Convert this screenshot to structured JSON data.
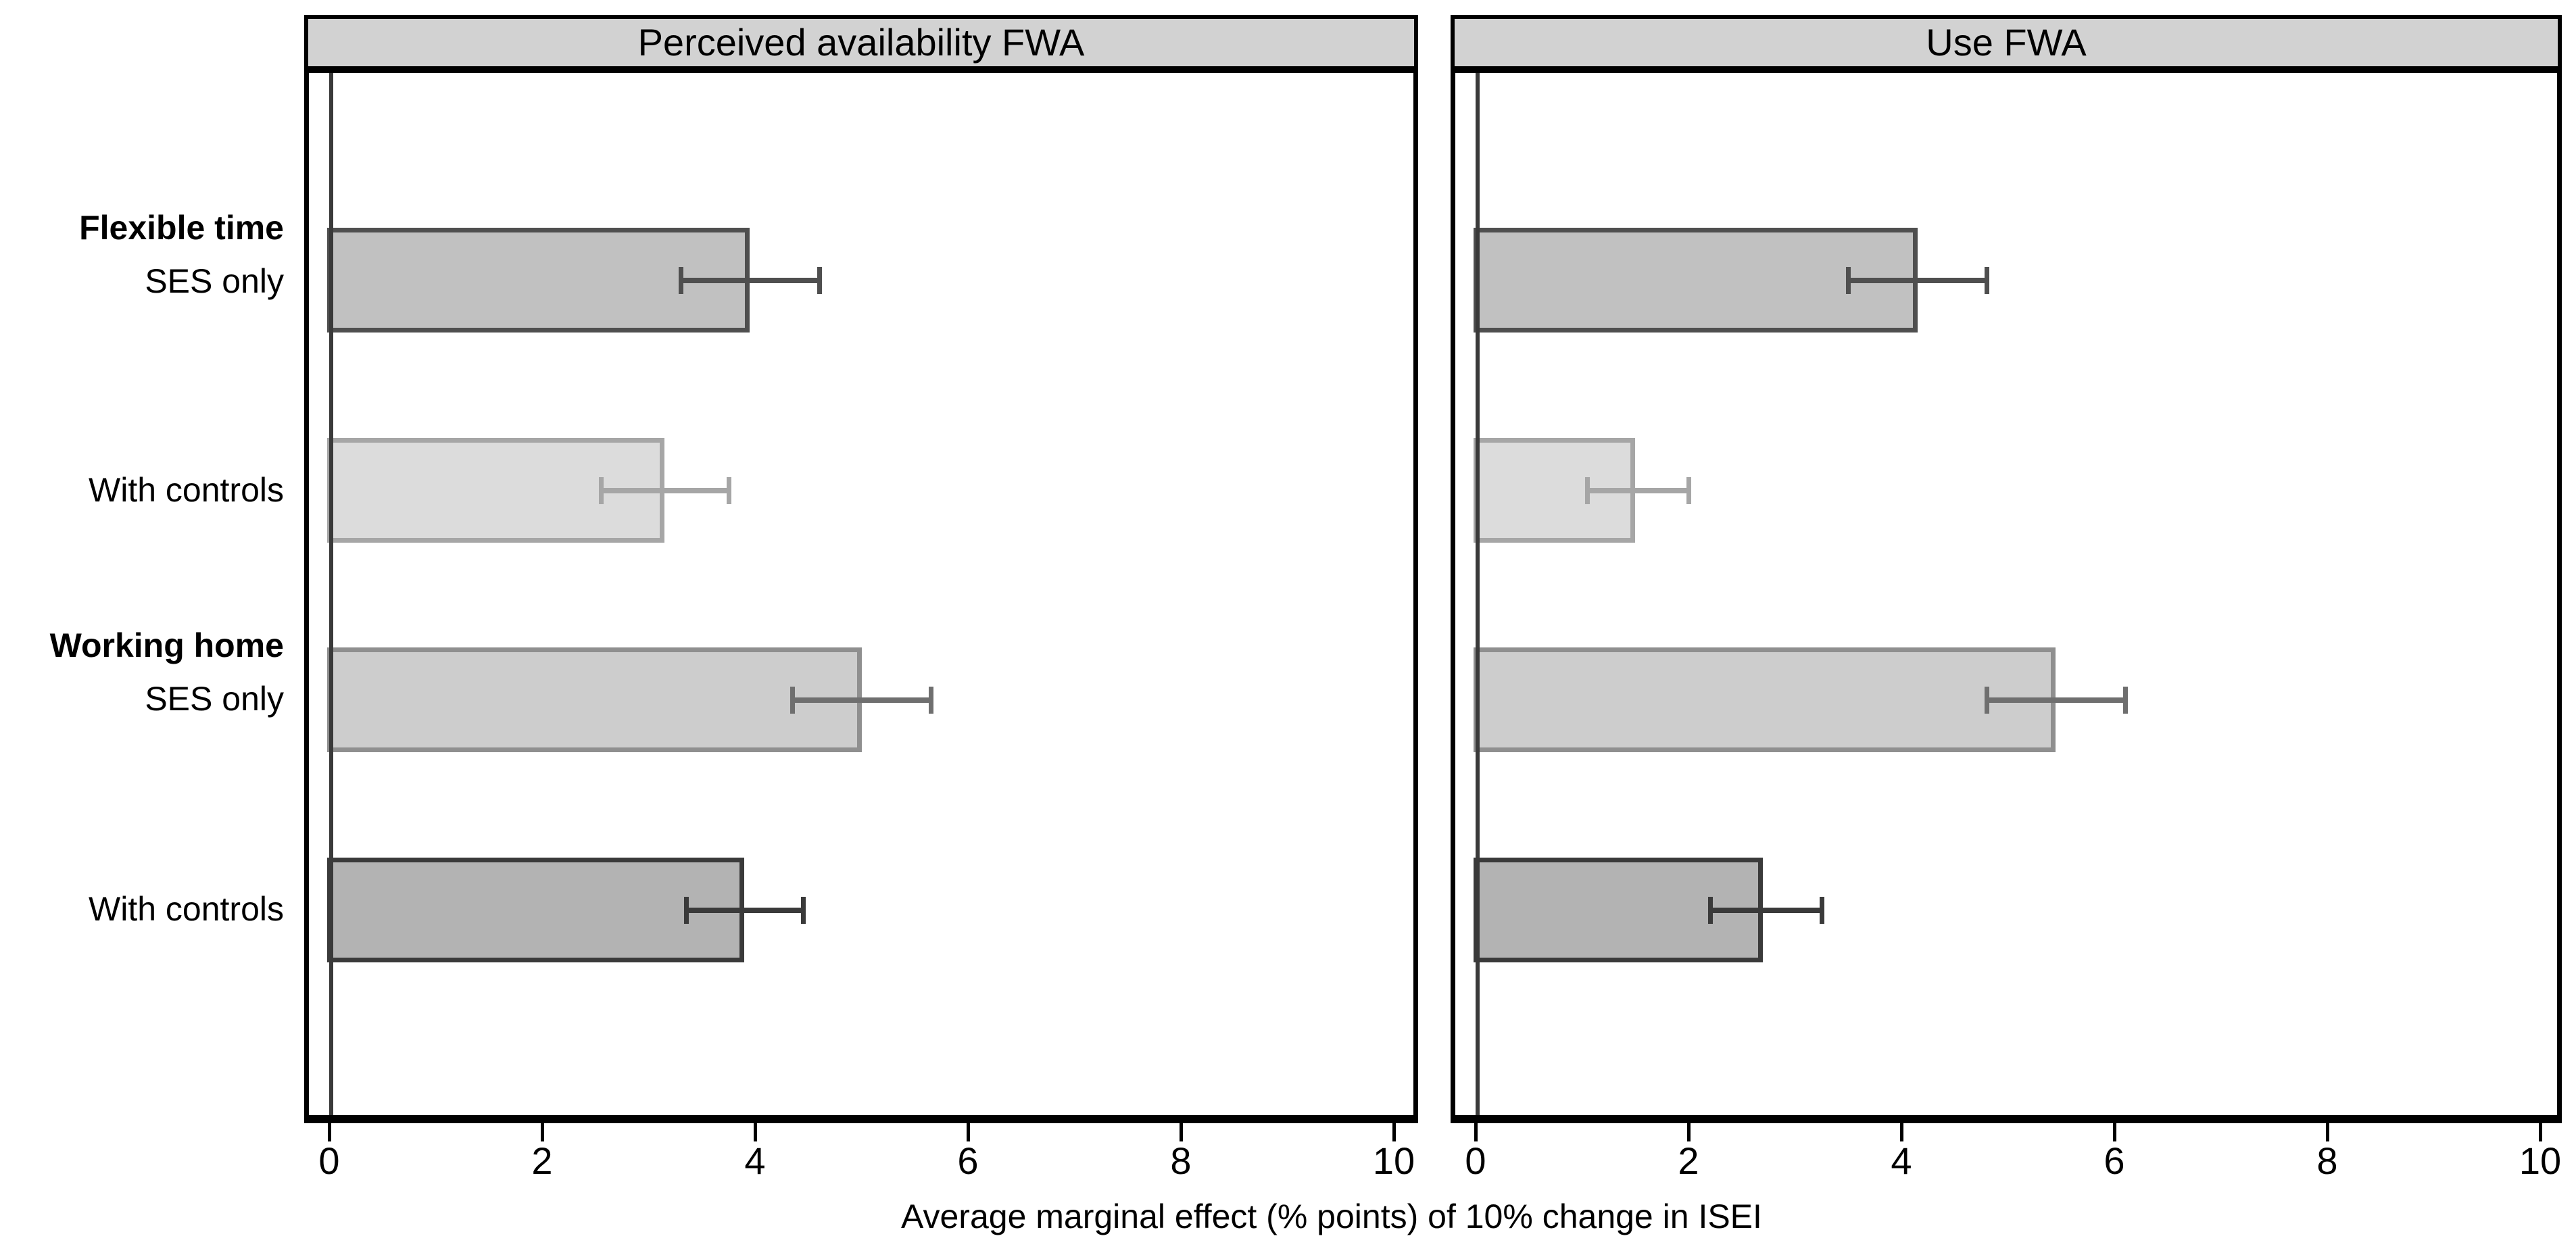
{
  "figure": {
    "xlabel": "Average marginal effect (% points) of 10% change in ISEI"
  },
  "categories": [
    {
      "group": "Flexible time",
      "model": "SES only"
    },
    {
      "group": "",
      "model": "With controls"
    },
    {
      "group": "Working home",
      "model": "SES only"
    },
    {
      "group": "",
      "model": "With controls"
    }
  ],
  "chart_data": {
    "type": "bar",
    "orientation": "horizontal",
    "xlabel": "Average marginal effect (% points) of 10% change in ISEI",
    "xlim": [
      -0.25,
      10.2
    ],
    "x_ticks": [
      0,
      2,
      4,
      6,
      8,
      10
    ],
    "grid": false,
    "legend": "none",
    "categories": [
      "Flexible time – SES only",
      "Flexible time – With controls",
      "Working home – SES only",
      "Working home – With controls"
    ],
    "panels": [
      {
        "title": "Perceived availability FWA",
        "values": [
          3.95,
          3.15,
          5.0,
          3.9
        ],
        "ci_low": [
          3.3,
          2.55,
          4.35,
          3.35
        ],
        "ci_high": [
          4.6,
          3.75,
          5.65,
          4.45
        ]
      },
      {
        "title": "Use FWA",
        "values": [
          4.15,
          1.5,
          5.45,
          2.7
        ],
        "ci_low": [
          3.5,
          1.05,
          4.8,
          2.2
        ],
        "ci_high": [
          4.8,
          2.0,
          6.1,
          3.25
        ]
      }
    ],
    "bar_styles": [
      {
        "fill": "#c1c1c1",
        "border": "#4f4f4f",
        "error": "#4f4f4f"
      },
      {
        "fill": "#dcdcdc",
        "border": "#a6a6a6",
        "error": "#a6a6a6"
      },
      {
        "fill": "#cdcdcd",
        "border": "#8f8f8f",
        "error": "#6f6f6f"
      },
      {
        "fill": "#b3b3b3",
        "border": "#3a3a3a",
        "error": "#3a3a3a"
      }
    ],
    "colors": {
      "panel_strip_bg": "#d2d2d2",
      "axis": "#000000",
      "zero_line": "#3a3a3a"
    }
  }
}
